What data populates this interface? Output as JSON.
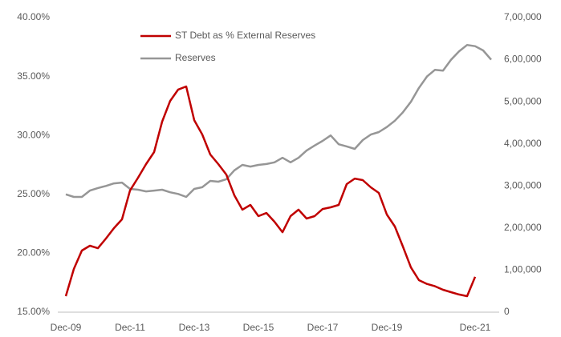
{
  "chart_data": {
    "type": "line",
    "categories": [
      "Dec-09",
      null,
      null,
      null,
      null,
      null,
      null,
      null,
      "Dec-11",
      null,
      null,
      null,
      null,
      null,
      null,
      null,
      "Dec-13",
      null,
      null,
      null,
      null,
      null,
      null,
      null,
      "Dec-15",
      null,
      null,
      null,
      null,
      null,
      null,
      null,
      "Dec-17",
      null,
      null,
      null,
      null,
      null,
      null,
      null,
      "Dec-19",
      null,
      null,
      null,
      null,
      null,
      null,
      null,
      null,
      null,
      null,
      "Dec-21",
      null,
      null
    ],
    "series": [
      {
        "name": "ST Debt as % External Reserves",
        "color": "#c00000",
        "values": [
          16.36,
          18.67,
          20.23,
          20.64,
          20.43,
          21.25,
          22.13,
          22.88,
          25.33,
          26.41,
          27.57,
          28.59,
          31.17,
          32.93,
          33.89,
          34.16,
          31.3,
          30.08,
          28.38,
          27.57,
          26.68,
          24.92,
          23.7,
          24.1,
          23.15,
          23.42,
          22.68,
          21.79,
          23.15,
          23.7,
          22.95,
          23.15,
          23.76,
          23.9,
          24.1,
          25.87,
          26.34,
          26.21,
          25.6,
          25.12,
          23.29,
          22.27,
          20.57,
          18.8,
          17.72,
          17.4,
          17.2,
          16.9,
          16.7,
          16.5,
          16.36,
          18.0,
          null,
          null
        ]
      },
      {
        "name": "Reserves",
        "color": "#969696",
        "axis": "y2",
        "values": [
          280000,
          274000,
          274000,
          289000,
          295000,
          300000,
          306000,
          308000,
          293000,
          291000,
          287000,
          289000,
          291000,
          285000,
          281000,
          274000,
          293000,
          297000,
          312000,
          310000,
          316000,
          337000,
          350000,
          346000,
          350000,
          352000,
          356000,
          367000,
          356000,
          367000,
          384000,
          396000,
          407000,
          420000,
          399000,
          394000,
          388000,
          409000,
          422000,
          428000,
          440000,
          455000,
          475000,
          500000,
          533000,
          560000,
          576000,
          574000,
          600000,
          620000,
          635000,
          632000,
          622000,
          600000
        ]
      }
    ],
    "ylim": [
      15,
      40
    ],
    "yticks": [
      {
        "value": 15,
        "label": "15.00%"
      },
      {
        "value": 20,
        "label": "20.00%"
      },
      {
        "value": 25,
        "label": "25.00%"
      },
      {
        "value": 30,
        "label": "30.00%"
      },
      {
        "value": 35,
        "label": "35.00%"
      },
      {
        "value": 40,
        "label": "40.00%"
      }
    ],
    "y2lim": [
      0,
      700000
    ],
    "y2ticks": [
      0,
      {
        "value": 100000,
        "label": "1,00,000"
      },
      {
        "value": 200000,
        "label": "2,00,000"
      },
      {
        "value": 300000,
        "label": "3,00,000"
      },
      {
        "value": 400000,
        "label": "4,00,000"
      },
      {
        "value": 500000,
        "label": "5,00,000"
      },
      {
        "value": 600000,
        "label": "6,00,000"
      },
      {
        "value": 700000,
        "label": "7,00,000"
      }
    ],
    "grid": false,
    "legend": "top"
  }
}
